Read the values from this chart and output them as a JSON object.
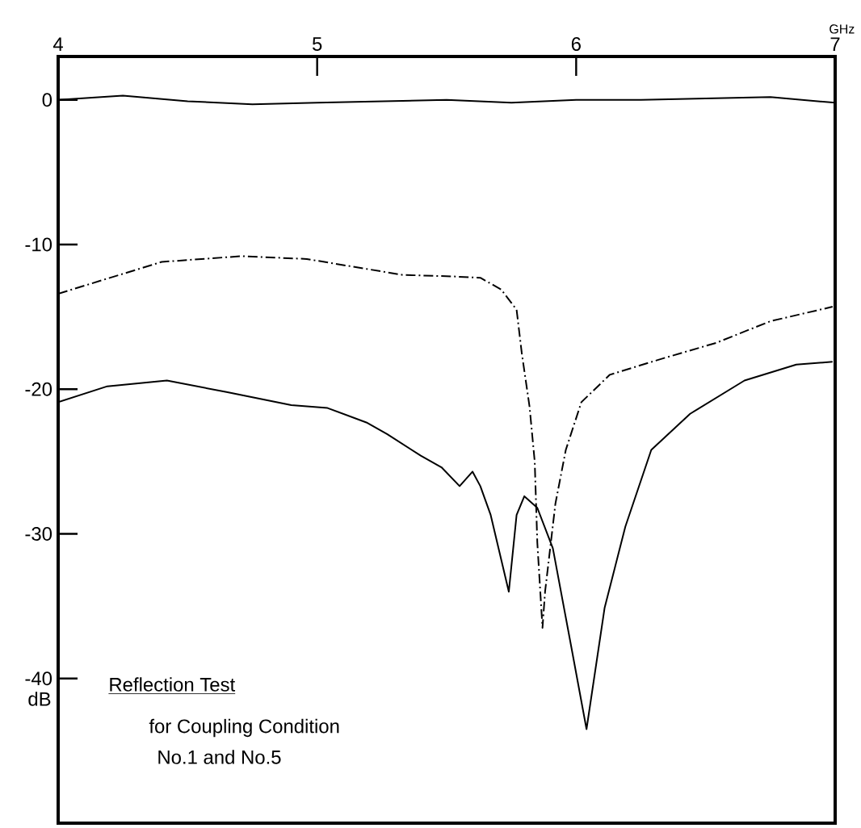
{
  "chart_data": {
    "type": "line",
    "xlabel": "GHz",
    "ylabel": "dB",
    "xlim": [
      4,
      7
    ],
    "ylim": [
      -50,
      3
    ],
    "xticks": [
      4,
      5,
      6,
      7
    ],
    "yticks": [
      0,
      -10,
      -20,
      -30,
      -40
    ],
    "grid": false,
    "marker": "none",
    "annotations": [
      "Reflection Test",
      "for Coupling Condition",
      "No.1 and No.5"
    ],
    "series": [
      {
        "color": "#000000",
        "line_style": "solid",
        "x": [
          4.0,
          4.25,
          4.5,
          4.75,
          5.0,
          5.5,
          5.75,
          6.0,
          6.25,
          6.5,
          6.75,
          7.0
        ],
        "values": [
          0,
          0.3,
          -0.1,
          -0.3,
          -0.2,
          0,
          -0.2,
          0,
          0,
          0.1,
          0.2,
          -0.2
        ]
      },
      {
        "color": "#000000",
        "line_style": "dashed",
        "x": [
          4.0,
          4.4,
          4.71,
          4.96,
          5.33,
          5.52,
          5.63,
          5.71,
          5.77,
          5.79,
          5.82,
          5.84,
          5.85,
          5.87,
          5.88,
          5.92,
          5.96,
          6.02,
          6.13,
          6.33,
          6.54,
          6.75,
          6.99
        ],
        "values": [
          -13.4,
          -11.2,
          -10.8,
          -11.0,
          -12.1,
          -12.2,
          -12.3,
          -13.1,
          -14.5,
          -17.5,
          -21.2,
          -25,
          -30.6,
          -36.5,
          -34,
          -27.9,
          -24.2,
          -20.9,
          -19,
          -17.9,
          -16.8,
          -15.3,
          -14.3
        ]
      },
      {
        "color": "#000000",
        "line_style": "solid",
        "x": [
          4.0,
          4.19,
          4.42,
          4.65,
          4.9,
          5.04,
          5.19,
          5.27,
          5.4,
          5.48,
          5.55,
          5.6,
          5.63,
          5.67,
          5.74,
          5.77,
          5.8,
          5.85,
          5.91,
          5.98,
          6.04,
          6.11,
          6.19,
          6.29,
          6.44,
          6.65,
          6.85,
          6.99
        ],
        "values": [
          -20.9,
          -19.8,
          -19.4,
          -20.2,
          -21.1,
          -21.3,
          -22.3,
          -23.1,
          -24.6,
          -25.4,
          -26.7,
          -25.7,
          -26.7,
          -28.7,
          -34,
          -28.7,
          -27.4,
          -28.2,
          -31,
          -37.7,
          -43.5,
          -35.1,
          -29.5,
          -24.2,
          -21.7,
          -19.4,
          -18.3,
          -18.1
        ]
      }
    ]
  }
}
